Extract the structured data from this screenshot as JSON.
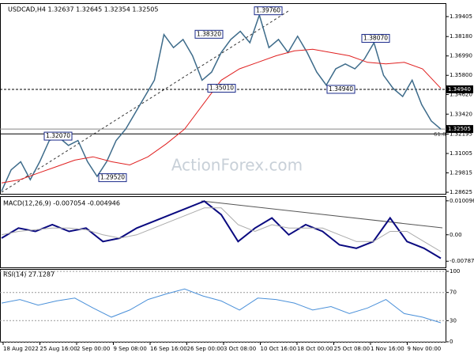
{
  "chart_data": {
    "type": "line",
    "title": "USDCAD,H4  1.32637 1.32645 1.32354 1.32505",
    "watermark": "ActionForex.com",
    "xlabels": [
      "18 Aug 2022",
      "25 Aug 16:00",
      "2 Sep 00:00",
      "9 Sep 08:00",
      "16 Sep 16:00",
      "26 Sep 00:00",
      "3 Oct 08:00",
      "10 Oct 16:00",
      "18 Oct 00:00",
      "25 Oct 08:00",
      "1 Nov 16:00",
      "9 Nov 00:00"
    ],
    "ylim": [
      1.2853,
      1.4018
    ],
    "yticks": [
      {
        "value": 1.39405,
        "label": "1.39405"
      },
      {
        "value": 1.3818,
        "label": "1.38180"
      },
      {
        "value": 1.3699,
        "label": "1.36990"
      },
      {
        "value": 1.358,
        "label": "1.35800"
      },
      {
        "value": 1.3462,
        "label": "1.34620"
      },
      {
        "value": 1.3342,
        "label": "1.33420"
      },
      {
        "value": 1.32195,
        "label": "1.32195"
      },
      {
        "value": 1.31005,
        "label": "1.31005"
      },
      {
        "value": 1.29815,
        "label": "1.29815"
      },
      {
        "value": 1.28625,
        "label": "1.28625"
      }
    ],
    "series": [
      {
        "name": "USDCAD",
        "color": "#3d6b8a",
        "values": [
          1.287,
          1.3,
          1.305,
          1.294,
          1.305,
          1.318,
          1.32,
          1.315,
          1.318,
          1.305,
          1.296,
          1.305,
          1.318,
          1.325,
          1.335,
          1.345,
          1.355,
          1.383,
          1.375,
          1.38,
          1.37,
          1.355,
          1.36,
          1.372,
          1.38,
          1.385,
          1.378,
          1.395,
          1.375,
          1.38,
          1.372,
          1.382,
          1.372,
          1.36,
          1.352,
          1.362,
          1.365,
          1.362,
          1.368,
          1.378,
          1.358,
          1.35,
          1.345,
          1.355,
          1.34,
          1.33,
          1.325
        ]
      },
      {
        "name": "MA",
        "color": "#e02020",
        "values": [
          1.292,
          1.294,
          1.298,
          1.302,
          1.306,
          1.308,
          1.305,
          1.303,
          1.308,
          1.316,
          1.325,
          1.34,
          1.355,
          1.362,
          1.366,
          1.37,
          1.373,
          1.374,
          1.372,
          1.37,
          1.366,
          1.365,
          1.366,
          1.362,
          1.35
        ]
      }
    ],
    "annotations": [
      {
        "value": 1.3976,
        "label": "1.39760"
      },
      {
        "value": 1.3832,
        "label": "1.38320"
      },
      {
        "value": 1.3807,
        "label": "1.38070"
      },
      {
        "value": 1.3501,
        "label": "1.35010"
      },
      {
        "value": 1.3494,
        "label": "1.34940"
      },
      {
        "value": 1.3207,
        "label": "1.32070"
      },
      {
        "value": 1.2952,
        "label": "1.29520"
      }
    ],
    "levels": [
      {
        "value": 1.3494,
        "label": "1.34940"
      },
      {
        "value": 1.32505,
        "label": "1.32505"
      }
    ],
    "fib_label": "61.8",
    "macd": {
      "label": "MACD(12,26,9) -0.007054 -0.004946",
      "ylim": [
        -0.0097,
        0.011
      ],
      "yticks": [
        0.010096,
        {
          "value": 0,
          "label": "0.00"
        },
        -0.00787
      ],
      "series": [
        {
          "name": "MACD",
          "color": "#0a0a80",
          "values": [
            -0.001,
            0.002,
            0.001,
            0.003,
            0.001,
            0.002,
            -0.002,
            -0.001,
            0.002,
            0.004,
            0.006,
            0.008,
            0.01,
            0.006,
            -0.002,
            0.002,
            0.005,
            0.0,
            0.003,
            0.001,
            -0.003,
            -0.004,
            -0.002,
            0.005,
            -0.002,
            -0.004,
            -0.007
          ]
        },
        {
          "name": "Signal",
          "color": "#aaaaaa",
          "values": [
            0.0,
            0.001,
            0.0015,
            0.002,
            0.002,
            0.0015,
            0.0,
            -0.001,
            0.0,
            0.002,
            0.004,
            0.006,
            0.008,
            0.008,
            0.003,
            0.001,
            0.003,
            0.002,
            0.002,
            0.002,
            0.0,
            -0.002,
            -0.002,
            0.001,
            0.001,
            -0.002,
            -0.005
          ]
        }
      ]
    },
    "rsi": {
      "label": "RSI(14) 27.1287",
      "ylim": [
        0,
        100
      ],
      "yticks": [
        100,
        70,
        30,
        0
      ],
      "color": "#4a90d9",
      "values": [
        55,
        60,
        52,
        58,
        62,
        48,
        35,
        45,
        60,
        68,
        75,
        65,
        58,
        45,
        62,
        60,
        55,
        45,
        50,
        40,
        48,
        60,
        40,
        35,
        27
      ]
    }
  }
}
